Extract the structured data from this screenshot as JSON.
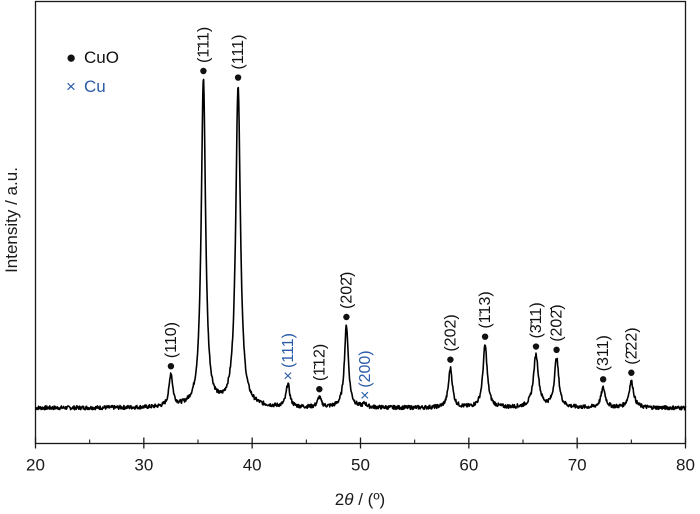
{
  "chart_data": {
    "type": "line",
    "xlabel_prefix": "2",
    "xlabel_symbol": "θ",
    "xlabel_suffix": " / (º)",
    "ylabel": "Intensity / a.u.",
    "xlim": [
      20,
      80
    ],
    "x_ticks": [
      "20",
      "30",
      "40",
      "50",
      "60",
      "70",
      "80"
    ],
    "x_tick_values": [
      20,
      30,
      40,
      50,
      60,
      70,
      80
    ],
    "grid": false,
    "legend_position": "top-left",
    "colors": {
      "cuo": "#111111",
      "cu": "#2a5ca8",
      "line": "#000000"
    },
    "legend": [
      {
        "marker": "●",
        "label": "CuO",
        "series": "cuo"
      },
      {
        "marker": "×",
        "label": "Cu",
        "series": "cu"
      }
    ],
    "series": [
      {
        "baseline": 0.0,
        "peaks": [
          {
            "x": 32.5,
            "y": 0.1,
            "w": 0.2,
            "phase": "cuo",
            "label": "(110)"
          },
          {
            "x": 35.5,
            "y": 1.0,
            "w": 0.24,
            "phase": "cuo",
            "label": "(1̄11)"
          },
          {
            "x": 38.7,
            "y": 0.98,
            "w": 0.26,
            "phase": "cuo",
            "label": "(111)"
          },
          {
            "x": 43.3,
            "y": 0.07,
            "w": 0.2,
            "phase": "cu",
            "label": "(111)"
          },
          {
            "x": 46.2,
            "y": 0.03,
            "w": 0.2,
            "phase": "cuo",
            "label": "(1̄12)"
          },
          {
            "x": 48.7,
            "y": 0.25,
            "w": 0.22,
            "phase": "cuo",
            "label": "(202̄)"
          },
          {
            "x": 50.4,
            "y": 0.01,
            "w": 0.2,
            "phase": "cu",
            "label": "(200)"
          },
          {
            "x": 58.3,
            "y": 0.12,
            "w": 0.22,
            "phase": "cuo",
            "label": "(202)"
          },
          {
            "x": 61.5,
            "y": 0.19,
            "w": 0.24,
            "phase": "cuo",
            "label": "(1̄13)"
          },
          {
            "x": 66.2,
            "y": 0.16,
            "w": 0.28,
            "phase": "cuo",
            "label": "(3̄11)"
          },
          {
            "x": 68.1,
            "y": 0.15,
            "w": 0.24,
            "phase": "cuo",
            "label": "(202̄)"
          },
          {
            "x": 72.4,
            "y": 0.06,
            "w": 0.24,
            "phase": "cuo",
            "label": "(311)"
          },
          {
            "x": 75.0,
            "y": 0.08,
            "w": 0.26,
            "phase": "cuo",
            "label": "(2̄22)"
          }
        ]
      }
    ]
  }
}
